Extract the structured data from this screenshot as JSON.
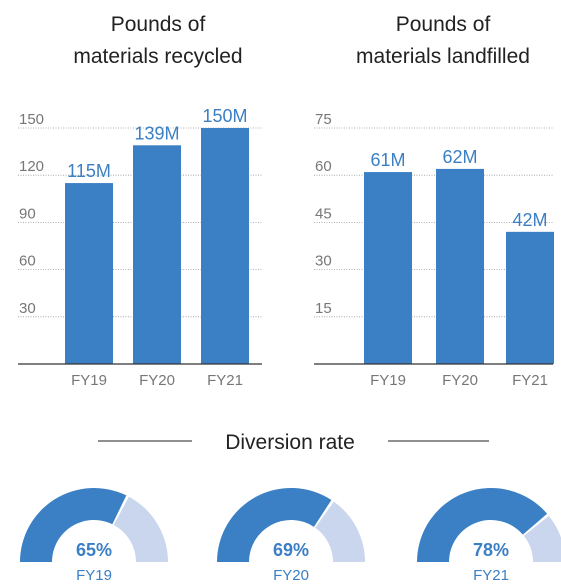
{
  "chart_data": [
    {
      "type": "bar",
      "title": "Pounds of materials recycled",
      "categories": [
        "FY19",
        "FY20",
        "FY21"
      ],
      "values": [
        115,
        139,
        150
      ],
      "data_labels": [
        "115M",
        "139M",
        "150M"
      ],
      "y_ticks": [
        150,
        120,
        90,
        60,
        30
      ],
      "ylim": [
        0,
        150
      ],
      "grid": true,
      "color": "#3b7fc4"
    },
    {
      "type": "bar",
      "title": "Pounds of materials landfilled",
      "categories": [
        "FY19",
        "FY20",
        "FY21"
      ],
      "values": [
        61,
        62,
        42
      ],
      "data_labels": [
        "61M",
        "62M",
        "42M"
      ],
      "y_ticks": [
        75,
        60,
        45,
        30,
        15
      ],
      "ylim": [
        0,
        75
      ],
      "grid": true,
      "color": "#3b7fc4"
    },
    {
      "type": "pie",
      "title": "Diversion rate",
      "categories": [
        "FY19",
        "FY20",
        "FY21"
      ],
      "values": [
        65,
        69,
        78
      ],
      "value_labels": [
        "65%",
        "69%",
        "78%"
      ],
      "color": "#3b7fc4",
      "remainder_color": "#c9d6ee"
    }
  ]
}
